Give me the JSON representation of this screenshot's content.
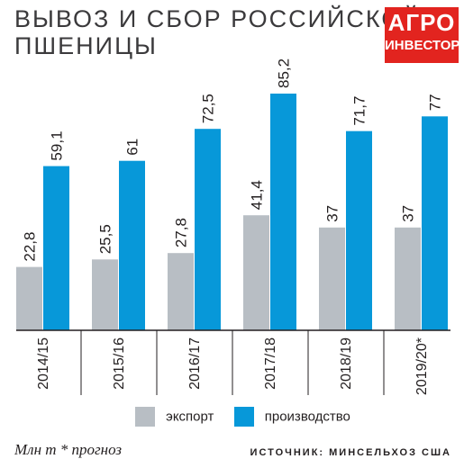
{
  "title_line1": "ВЫВОЗ И СБОР РОССИЙСКОЙ",
  "title_line2": "ПШЕНИЦЫ",
  "logo": {
    "line1": "АГРО",
    "line2": "ИНВЕСТОР"
  },
  "units": "Млн т  * прогноз",
  "source": "ИСТОЧНИК: МИНСЕЛЬХОЗ США",
  "colors": {
    "export": "#b8bec4",
    "production": "#0798d9",
    "baseline": "#231f20",
    "logo": "#e2241f"
  },
  "chart_data": {
    "type": "bar",
    "categories": [
      "2014/15",
      "2015/16",
      "2016/17",
      "2017/18",
      "2018/19",
      "2019/20*"
    ],
    "series": [
      {
        "name": "экспорт",
        "values": [
          22.8,
          25.5,
          27.8,
          41.4,
          37,
          37
        ],
        "labels": [
          "22,8",
          "25,5",
          "27,8",
          "41,4",
          "37",
          "37"
        ]
      },
      {
        "name": "производство",
        "values": [
          59.1,
          61,
          72.5,
          85.2,
          71.7,
          77
        ],
        "labels": [
          "59,1",
          "61",
          "72,5",
          "85,2",
          "71,7",
          "77"
        ]
      }
    ],
    "ylim": [
      0,
      85.2
    ],
    "legend": "bottom",
    "grid": false
  }
}
